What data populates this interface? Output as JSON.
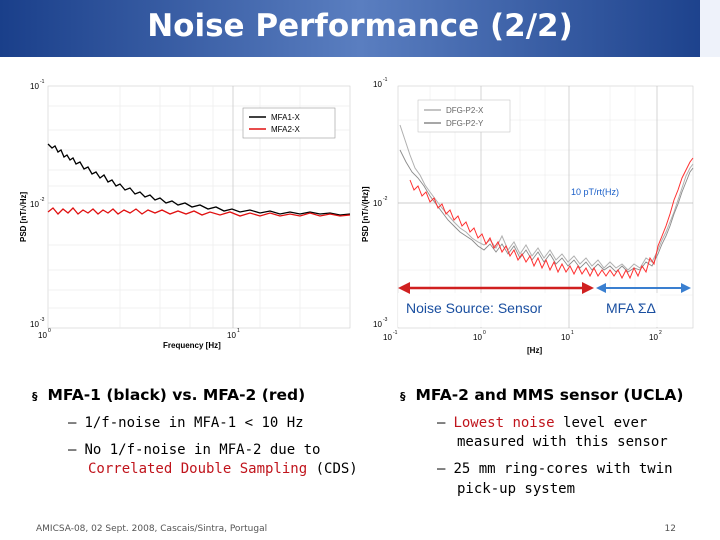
{
  "slide": {
    "title": "Noise Performance (2/2)",
    "footer_left": "AMICSA-08, 02 Sept. 2008, Cascais/Sintra, Portugal",
    "page_number": "12"
  },
  "left_chart": {
    "ylabel": "PSD [nT/√Hz]",
    "xlabel": "Frequency [Hz]",
    "ytick_top": "10",
    "ytick_top_exp": "-1",
    "ytick_mid": "10",
    "ytick_mid_exp": "-2",
    "ytick_bot": "10",
    "ytick_bot_exp": "-3",
    "xtick_0": "10",
    "xtick_0_exp": "0",
    "xtick_1": "10",
    "xtick_1_exp": "1",
    "legend_1": "MFA1-X",
    "legend_2": "MFA2-X"
  },
  "right_chart": {
    "ylabel": "PSD [nT/√(Hz)]",
    "xlabel": "[Hz]",
    "ytick_top": "10",
    "ytick_top_exp": "-1",
    "ytick_mid": "10",
    "ytick_mid_exp": "-2",
    "ytick_bot": "10",
    "ytick_bot_exp": "-3",
    "xtick_m1": "10",
    "xtick_m1_exp": "-1",
    "xtick_0": "10",
    "xtick_0_exp": "0",
    "xtick_1": "10",
    "xtick_1_exp": "1",
    "xtick_2": "10",
    "xtick_2_exp": "2",
    "legend_1": "DFG-P2-X",
    "legend_2": "DFG-P2-Y",
    "ref_label": "10 pT/rt(Hz)",
    "noise_source": "Noise Source: Sensor",
    "mfa_label": "MFA  ΣΔ"
  },
  "colors": {
    "accent_red": "#c0141c",
    "arrow_blue": "#3a7fd0"
  },
  "bullets_left": {
    "heading": "MFA-1 (black) vs. MFA-2 (red)",
    "sub1": "1/f-noise in MFA-1 < 10 Hz",
    "sub2_pre": "No 1/f-noise in MFA-2 due to",
    "sub2_red": "Correlated Double Sampling",
    "sub2_post": " (CDS)"
  },
  "bullets_right": {
    "heading": "MFA-2 and MMS sensor (UCLA)",
    "sub1_red": "Lowest noise",
    "sub1_rest": " level ever",
    "sub1_line2": "measured with this sensor",
    "sub2_line1": "25 mm ring-cores with twin",
    "sub2_line2": "pick-up system"
  },
  "bullet_marks": {
    "main": "§",
    "sub": "–"
  }
}
